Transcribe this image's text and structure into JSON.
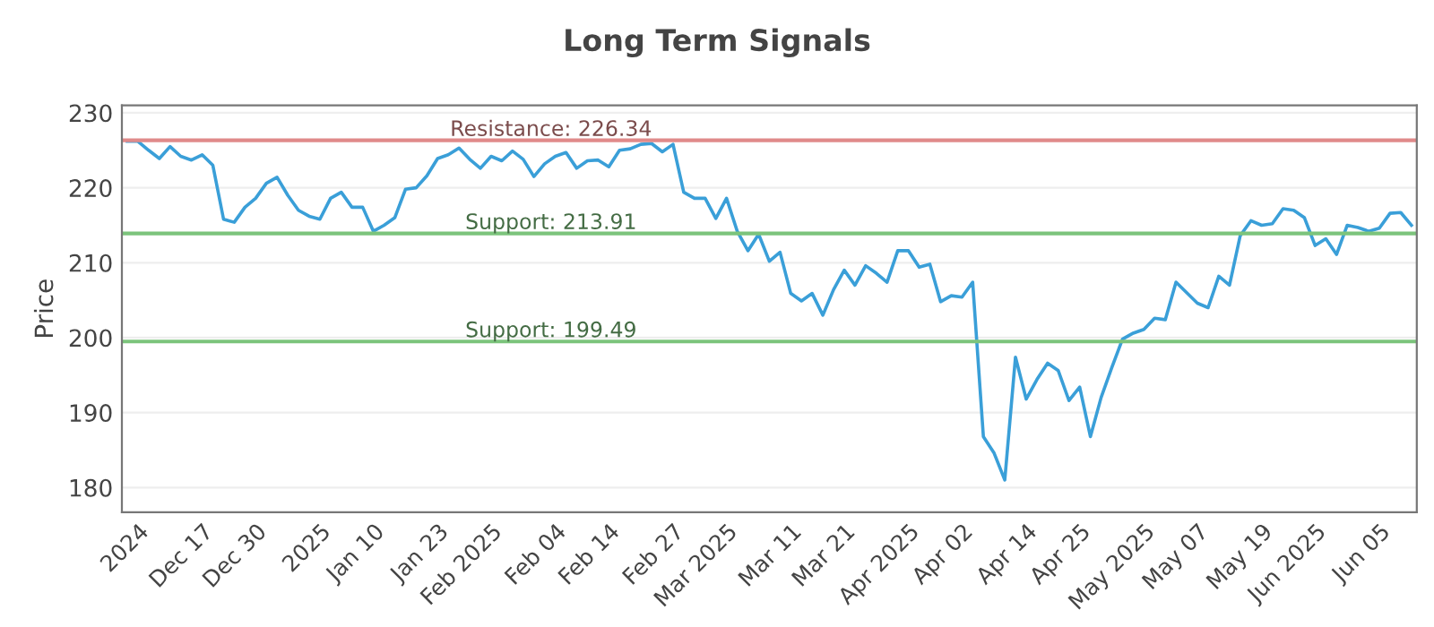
{
  "chart_data": {
    "type": "line",
    "title": "Long Term Signals",
    "ylabel": "Price",
    "categories": [
      null,
      "2024",
      null,
      null,
      null,
      null,
      null,
      "Dec 17",
      null,
      null,
      null,
      null,
      "Dec 30",
      null,
      null,
      null,
      null,
      null,
      "2025",
      null,
      null,
      null,
      null,
      "Jan 10",
      null,
      null,
      null,
      null,
      null,
      "Jan 23",
      null,
      null,
      null,
      null,
      "Feb 2025",
      null,
      null,
      null,
      null,
      null,
      "Feb 04",
      null,
      null,
      null,
      null,
      "Feb 14",
      null,
      null,
      null,
      null,
      null,
      "Feb 27",
      null,
      null,
      null,
      null,
      "Mar 2025",
      null,
      null,
      null,
      null,
      null,
      "Mar 11",
      null,
      null,
      null,
      null,
      "Mar 21",
      null,
      null,
      null,
      null,
      null,
      "Apr 2025",
      null,
      null,
      null,
      null,
      "Apr 02",
      null,
      null,
      null,
      null,
      null,
      "Apr 14",
      null,
      null,
      null,
      null,
      "Apr 25",
      null,
      null,
      null,
      null,
      null,
      "May 2025",
      null,
      null,
      null,
      null,
      "May 07",
      null,
      null,
      null,
      null,
      null,
      "May 19",
      null,
      null,
      null,
      null,
      "Jun 2025",
      null,
      null,
      null,
      null,
      null,
      "Jun 05",
      null,
      null,
      null
    ],
    "series": [
      {
        "color": "#3a9fd8",
        "values": [
          226.2,
          226.2,
          225.0,
          223.9,
          225.5,
          224.2,
          223.7,
          224.4,
          223.0,
          215.8,
          215.4,
          217.4,
          218.6,
          220.6,
          221.4,
          219.0,
          217.0,
          216.2,
          215.8,
          218.6,
          219.4,
          217.4,
          217.4,
          214.2,
          215.0,
          216.0,
          219.8,
          220.0,
          221.6,
          223.9,
          224.4,
          225.3,
          223.8,
          222.6,
          224.2,
          223.6,
          224.9,
          223.8,
          221.5,
          223.2,
          224.2,
          224.7,
          222.6,
          223.6,
          223.7,
          222.8,
          225.0,
          225.2,
          225.8,
          225.9,
          224.8,
          225.8,
          219.4,
          218.6,
          218.6,
          215.9,
          218.6,
          214.2,
          211.6,
          213.8,
          210.2,
          211.4,
          205.9,
          204.9,
          205.9,
          203.0,
          206.4,
          209.0,
          207.0,
          209.6,
          208.6,
          207.4,
          211.6,
          211.6,
          209.4,
          209.8,
          204.8,
          205.6,
          205.4,
          207.4,
          186.8,
          184.6,
          181.0,
          197.4,
          191.8,
          194.4,
          196.6,
          195.6,
          191.6,
          193.4,
          186.8,
          192.0,
          196.0,
          199.8,
          200.6,
          201.1,
          202.6,
          202.4,
          207.4,
          206.0,
          204.6,
          204.0,
          208.2,
          207.0,
          213.6,
          215.6,
          215.0,
          215.2,
          217.2,
          217.0,
          216.0,
          212.3,
          213.2,
          211.1,
          215.0,
          214.7,
          214.2,
          214.6,
          216.6,
          216.7,
          215.0
        ]
      }
    ],
    "ylim": [
      176.7,
      231
    ],
    "yticks": [
      180,
      190,
      200,
      210,
      220,
      230
    ],
    "grid": "y",
    "ref_lines": [
      {
        "axis": "y",
        "value": 226.34,
        "label": "Resistance: 226.34",
        "color": "#e08a8a"
      },
      {
        "axis": "y",
        "value": 213.91,
        "label": "Support: 213.91",
        "color": "#7cc47c"
      },
      {
        "axis": "y",
        "value": 199.49,
        "label": "Support: 199.49",
        "color": "#7cc47c"
      }
    ]
  }
}
